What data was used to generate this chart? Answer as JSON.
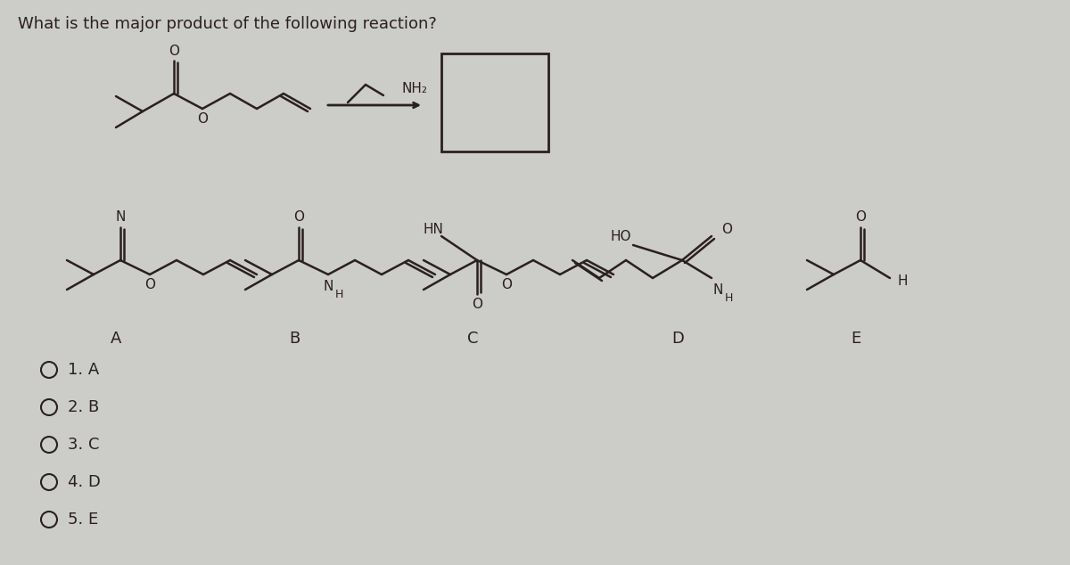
{
  "title": "What is the major product of the following reaction?",
  "bg_color": "#ccccc8",
  "text_color": "#2a2020",
  "options": [
    "1. A",
    "2. B",
    "3. C",
    "4. D",
    "5. E"
  ],
  "labels": [
    "A",
    "B",
    "C",
    "D",
    "E"
  ]
}
